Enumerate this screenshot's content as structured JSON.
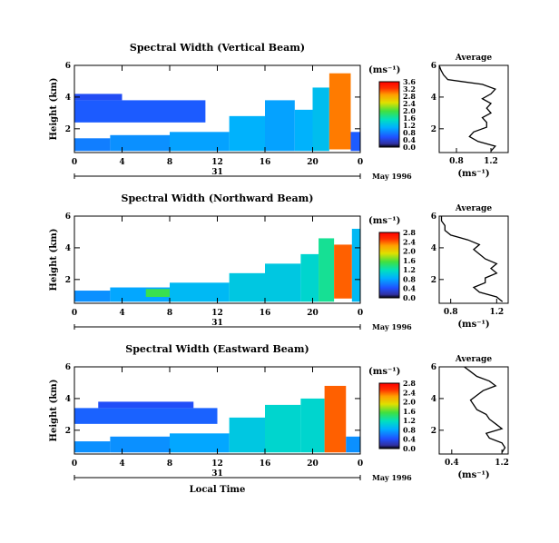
{
  "chart_data": [
    {
      "type": "heatmap",
      "title": "Spectral Width (Vertical Beam)",
      "ylabel": "Height (km)",
      "xticks": [
        "0",
        "4",
        "8",
        "12",
        "16",
        "20",
        "0"
      ],
      "yticks": [
        "6",
        "4",
        "2"
      ],
      "date_day": "31",
      "date_label": "May 1996",
      "xlim": [
        0,
        24
      ],
      "ylim": [
        0.5,
        6
      ],
      "colorbar": {
        "unit": "(ms⁻¹)",
        "ticks": [
          "3.6",
          "3.2",
          "2.8",
          "2.4",
          "2.0",
          "1.6",
          "1.2",
          "0.8",
          "0.4",
          "0.0"
        ],
        "range": [
          0,
          3.6
        ]
      },
      "cells": [
        {
          "t": [
            0,
            3
          ],
          "h": [
            0.6,
            1.4
          ],
          "v": 0.8
        },
        {
          "t": [
            3,
            8
          ],
          "h": [
            0.6,
            1.6
          ],
          "v": 0.9
        },
        {
          "t": [
            8,
            13
          ],
          "h": [
            0.6,
            1.8
          ],
          "v": 1.0
        },
        {
          "t": [
            13,
            16
          ],
          "h": [
            0.6,
            2.8
          ],
          "v": 1.1
        },
        {
          "t": [
            16,
            18.5
          ],
          "h": [
            0.6,
            3.8
          ],
          "v": 1.0
        },
        {
          "t": [
            18.5,
            20
          ],
          "h": [
            0.6,
            3.2
          ],
          "v": 1.1
        },
        {
          "t": [
            20,
            21.4
          ],
          "h": [
            0.6,
            4.6
          ],
          "v": 1.2
        },
        {
          "t": [
            21.4,
            23.2
          ],
          "h": [
            0.7,
            5.5
          ],
          "v": 3.0
        },
        {
          "t": [
            23.2,
            24
          ],
          "h": [
            0.6,
            1.8
          ],
          "v": 0.6
        },
        {
          "t": [
            0,
            11
          ],
          "h": [
            2.4,
            3.8
          ],
          "v": 0.6
        },
        {
          "t": [
            0,
            4
          ],
          "h": [
            3.8,
            4.2
          ],
          "v": 0.5
        }
      ],
      "average": {
        "title": "Average",
        "unit": "(ms⁻¹)",
        "xticks": [
          "0.8",
          "1.2"
        ],
        "xlim": [
          0.6,
          1.4
        ],
        "yticks": [
          "6",
          "4",
          "2"
        ],
        "ylim": [
          0.5,
          6
        ],
        "height": [
          0.6,
          0.9,
          1.2,
          1.5,
          1.8,
          2.1,
          2.4,
          2.7,
          3.0,
          3.3,
          3.6,
          3.9,
          4.2,
          4.5,
          4.8,
          5.1,
          5.4,
          5.7,
          6.0
        ],
        "width": [
          1.2,
          1.25,
          1.05,
          0.95,
          1.0,
          1.15,
          1.15,
          1.1,
          1.2,
          1.15,
          1.2,
          1.1,
          1.2,
          1.25,
          1.1,
          0.7,
          0.65,
          0.62,
          0.6
        ]
      }
    },
    {
      "type": "heatmap",
      "title": "Spectral Width (Northward Beam)",
      "ylabel": "Height (km)",
      "xticks": [
        "0",
        "4",
        "8",
        "12",
        "16",
        "20",
        "0"
      ],
      "yticks": [
        "6",
        "4",
        "2"
      ],
      "date_day": "31",
      "date_label": "May 1996",
      "xlim": [
        0,
        24
      ],
      "ylim": [
        0.5,
        6
      ],
      "colorbar": {
        "unit": "(ms⁻¹)",
        "ticks": [
          "2.8",
          "2.4",
          "2.0",
          "1.6",
          "1.2",
          "0.8",
          "0.4",
          "0.0"
        ],
        "range": [
          0,
          2.8
        ]
      },
      "cells": [
        {
          "t": [
            0,
            3
          ],
          "h": [
            0.6,
            1.3
          ],
          "v": 0.7
        },
        {
          "t": [
            3,
            8
          ],
          "h": [
            0.6,
            1.5
          ],
          "v": 0.8
        },
        {
          "t": [
            6,
            8
          ],
          "h": [
            0.9,
            1.4
          ],
          "v": 1.5
        },
        {
          "t": [
            8,
            13
          ],
          "h": [
            0.6,
            1.8
          ],
          "v": 0.9
        },
        {
          "t": [
            13,
            16
          ],
          "h": [
            0.6,
            2.4
          ],
          "v": 1.0
        },
        {
          "t": [
            16,
            19
          ],
          "h": [
            0.6,
            3.0
          ],
          "v": 1.0
        },
        {
          "t": [
            19,
            20.5
          ],
          "h": [
            0.6,
            3.6
          ],
          "v": 1.1
        },
        {
          "t": [
            20.5,
            21.8
          ],
          "h": [
            0.6,
            4.6
          ],
          "v": 1.3
        },
        {
          "t": [
            21.8,
            23.3
          ],
          "h": [
            0.8,
            4.2
          ],
          "v": 2.4
        },
        {
          "t": [
            23.3,
            24
          ],
          "h": [
            0.6,
            5.2
          ],
          "v": 0.9
        }
      ],
      "average": {
        "title": "Average",
        "unit": "(ms⁻¹)",
        "xticks": [
          "0.8",
          "1.2"
        ],
        "xlim": [
          0.7,
          1.3
        ],
        "yticks": [
          "6",
          "4",
          "2"
        ],
        "ylim": [
          0.5,
          6
        ],
        "height": [
          0.6,
          0.9,
          1.2,
          1.5,
          1.8,
          2.1,
          2.4,
          2.7,
          3.0,
          3.3,
          3.6,
          3.9,
          4.2,
          4.5,
          4.8,
          5.1,
          5.4,
          5.7,
          6.0
        ],
        "width": [
          1.25,
          1.2,
          1.05,
          1.0,
          1.1,
          1.1,
          1.2,
          1.15,
          1.2,
          1.1,
          1.05,
          1.0,
          1.05,
          0.95,
          0.8,
          0.75,
          0.75,
          0.72,
          0.72
        ]
      }
    },
    {
      "type": "heatmap",
      "title": "Spectral Width (Eastward Beam)",
      "ylabel": "Height (km)",
      "xlabel": "Local Time",
      "xticks": [
        "0",
        "4",
        "8",
        "12",
        "16",
        "20",
        "0"
      ],
      "yticks": [
        "6",
        "4",
        "2"
      ],
      "date_day": "31",
      "date_label": "May 1996",
      "xlim": [
        0,
        24
      ],
      "ylim": [
        0.5,
        6
      ],
      "colorbar": {
        "unit": "(ms⁻¹)",
        "ticks": [
          "2.8",
          "2.4",
          "2.0",
          "1.6",
          "1.2",
          "0.8",
          "0.4",
          "0.0"
        ],
        "range": [
          0,
          2.8
        ]
      },
      "cells": [
        {
          "t": [
            0,
            3
          ],
          "h": [
            0.6,
            1.3
          ],
          "v": 0.7
        },
        {
          "t": [
            3,
            8
          ],
          "h": [
            0.6,
            1.6
          ],
          "v": 0.7
        },
        {
          "t": [
            8,
            13
          ],
          "h": [
            0.6,
            1.8
          ],
          "v": 0.8
        },
        {
          "t": [
            13,
            16
          ],
          "h": [
            0.6,
            2.8
          ],
          "v": 1.0
        },
        {
          "t": [
            16,
            19
          ],
          "h": [
            0.6,
            3.6
          ],
          "v": 1.1
        },
        {
          "t": [
            19,
            21
          ],
          "h": [
            0.6,
            4.0
          ],
          "v": 1.1
        },
        {
          "t": [
            21,
            22.8
          ],
          "h": [
            0.6,
            4.8
          ],
          "v": 2.4
        },
        {
          "t": [
            22.8,
            24
          ],
          "h": [
            0.6,
            1.6
          ],
          "v": 0.7
        },
        {
          "t": [
            0,
            12
          ],
          "h": [
            2.4,
            3.4
          ],
          "v": 0.5
        },
        {
          "t": [
            2,
            10
          ],
          "h": [
            3.4,
            3.8
          ],
          "v": 0.4
        }
      ],
      "average": {
        "title": "Average",
        "unit": "(ms⁻¹)",
        "xticks": [
          "0.4",
          "1.2"
        ],
        "xlim": [
          0.2,
          1.3
        ],
        "yticks": [
          "6",
          "4",
          "2"
        ],
        "ylim": [
          0.5,
          6
        ],
        "height": [
          0.6,
          0.9,
          1.2,
          1.5,
          1.8,
          2.1,
          2.4,
          2.7,
          3.0,
          3.3,
          3.6,
          3.9,
          4.2,
          4.5,
          4.8,
          5.1,
          5.4,
          5.7,
          6.0
        ],
        "width": [
          1.2,
          1.25,
          1.2,
          1.0,
          0.95,
          1.2,
          1.1,
          1.0,
          0.95,
          0.8,
          0.75,
          0.7,
          0.8,
          0.9,
          1.1,
          1.0,
          0.8,
          0.7,
          0.6
        ]
      }
    }
  ]
}
